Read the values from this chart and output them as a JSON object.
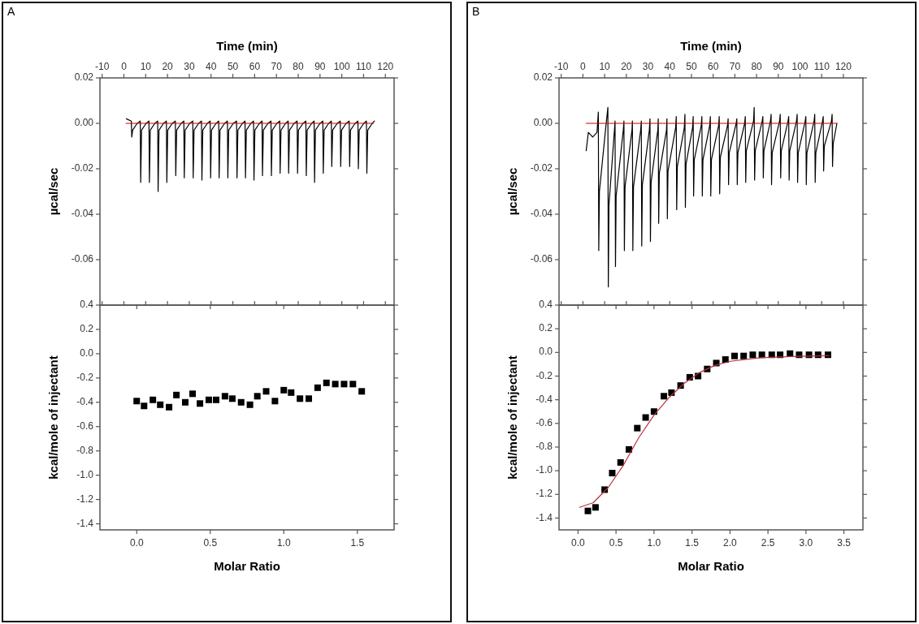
{
  "chart_data": [
    {
      "type": "line",
      "title": "A",
      "xlabel": "Time (min)",
      "ylabel": "µcal/sec",
      "xlim": [
        -11,
        124
      ],
      "xticks": [
        -10,
        0,
        10,
        20,
        30,
        40,
        50,
        60,
        70,
        80,
        90,
        100,
        110,
        120
      ],
      "ylim": [
        -0.08,
        0.02
      ],
      "yticks": [
        {
          "value": -0.06,
          "label": "-0.06"
        },
        {
          "value": -0.04,
          "label": "-0.04"
        },
        {
          "value": -0.02,
          "label": "-0.02"
        },
        {
          "value": 0,
          "label": "0.00"
        },
        {
          "value": 0.02,
          "label": "0.02"
        }
      ],
      "series": [
        {
          "color": "#000000",
          "x": [
            1.1,
            3.4,
            3.6,
            4.0,
            6.1,
            7.5,
            7.7,
            8.1,
            10.2,
            11.5,
            11.7,
            12.1,
            14.2,
            15.5,
            15.7,
            16.1,
            18.2,
            19.5,
            19.7,
            20.1,
            22.2,
            23.6,
            23.8,
            24.2,
            26.3,
            27.5,
            27.7,
            28.1,
            30.2,
            31.6,
            31.8,
            32.2,
            34.3,
            35.6,
            35.8,
            36.2,
            38.3,
            39.6,
            39.8,
            40.2,
            42.3,
            43.5,
            43.7,
            44.1,
            46.2,
            47.5,
            47.7,
            48.1,
            50.2,
            51.7,
            51.9,
            52.3,
            54.4,
            55.6,
            55.8,
            56.2,
            58.3,
            59.5,
            59.7,
            60.1,
            62.2,
            63.4,
            63.6,
            64.0,
            66.1,
            67.5,
            67.7,
            68.1,
            70.2,
            71.5,
            71.7,
            72.1,
            74.2,
            75.4,
            75.6,
            76.0,
            78.1,
            79.5,
            79.7,
            80.1,
            82.2,
            83.5,
            83.7,
            84.1,
            86.2,
            87.3,
            87.5,
            87.9,
            90.0,
            91.3,
            91.5,
            91.9,
            94.0,
            95.2,
            95.4,
            95.8,
            97.9,
            99.3,
            99.5,
            99.9,
            102.0,
            103.4,
            103.6,
            104.0,
            106.1,
            107.4,
            107.6,
            108.0,
            110.1,
            111.3,
            111.5,
            111.9,
            114.0,
            115.0
          ],
          "values": [
            0.002,
            0.001,
            -0.006,
            -0.003,
            0.0,
            0.001,
            -0.026,
            -0.003,
            0.0,
            0.001,
            -0.026,
            -0.003,
            0.0,
            0.001,
            -0.03,
            -0.003,
            0.0,
            0.001,
            -0.026,
            -0.003,
            0.0,
            0.001,
            -0.023,
            -0.003,
            0.0,
            0.001,
            -0.024,
            -0.003,
            0.0,
            0.001,
            -0.024,
            -0.003,
            0.0,
            0.001,
            -0.025,
            -0.003,
            0.0,
            0.001,
            -0.024,
            -0.003,
            0.0,
            0.001,
            -0.024,
            -0.003,
            0.0,
            0.001,
            -0.024,
            -0.003,
            0.0,
            0.001,
            -0.024,
            -0.003,
            0.0,
            0.001,
            -0.024,
            -0.003,
            0.0,
            0.001,
            -0.025,
            -0.003,
            0.0,
            0.001,
            -0.023,
            -0.003,
            0.0,
            0.001,
            -0.023,
            -0.003,
            0.0,
            0.001,
            -0.022,
            -0.003,
            0.0,
            0.001,
            -0.022,
            -0.003,
            0.0,
            0.001,
            -0.022,
            -0.003,
            0.0,
            0.001,
            -0.023,
            -0.003,
            0.0,
            0.001,
            -0.026,
            -0.003,
            0.0,
            0.001,
            -0.022,
            -0.003,
            0.0,
            0.001,
            -0.019,
            -0.003,
            0.0,
            0.001,
            -0.019,
            -0.003,
            0.0,
            0.001,
            -0.019,
            -0.003,
            0.0,
            0.001,
            -0.02,
            -0.003,
            0.0,
            0.001,
            -0.022,
            -0.003,
            0.0,
            0.001
          ]
        },
        {
          "color": "#cc0000",
          "x": [
            1.0,
            114.5
          ],
          "values": [
            0,
            0
          ]
        }
      ]
    },
    {
      "type": "scatter",
      "marker": "square",
      "xlabel": "Molar Ratio",
      "ylabel": "kcal/mole of injectant",
      "xlim": [
        -0.25,
        1.75
      ],
      "xticks": [
        {
          "value": 0,
          "label": "0.0"
        },
        {
          "value": 0.5,
          "label": "0.5"
        },
        {
          "value": 1,
          "label": "1.0"
        },
        {
          "value": 1.5,
          "label": "1.5"
        }
      ],
      "ylim": [
        -1.45,
        0.4
      ],
      "yticks": [
        {
          "value": -1.4,
          "label": "-1.4"
        },
        {
          "value": -1.2,
          "label": "-1.2"
        },
        {
          "value": -1,
          "label": "-1.0"
        },
        {
          "value": -0.8,
          "label": "-0.8"
        },
        {
          "value": -0.6,
          "label": "-0.6"
        },
        {
          "value": -0.4,
          "label": "-0.4"
        },
        {
          "value": -0.2,
          "label": "-0.2"
        },
        {
          "value": 0,
          "label": "0.0"
        },
        {
          "value": 0.2,
          "label": "0.2"
        },
        {
          "value": 0.4,
          "label": "0.4"
        }
      ],
      "series": [
        {
          "color": "#000000",
          "x": [
            0.0,
            0.05,
            0.11,
            0.16,
            0.22,
            0.27,
            0.33,
            0.38,
            0.43,
            0.49,
            0.54,
            0.6,
            0.65,
            0.71,
            0.77,
            0.82,
            0.88,
            0.94,
            1.0,
            1.05,
            1.11,
            1.17,
            1.23,
            1.29,
            1.35,
            1.41,
            1.47,
            1.53
          ],
          "values": [
            -0.39,
            -0.43,
            -0.38,
            -0.42,
            -0.44,
            -0.34,
            -0.4,
            -0.33,
            -0.41,
            -0.38,
            -0.38,
            -0.35,
            -0.37,
            -0.4,
            -0.42,
            -0.35,
            -0.31,
            -0.39,
            -0.3,
            -0.32,
            -0.37,
            -0.37,
            -0.28,
            -0.24,
            -0.25,
            -0.25,
            -0.25,
            -0.31
          ]
        }
      ]
    },
    {
      "type": "line",
      "title": "B",
      "xlabel": "Time (min)",
      "ylabel": "µcal/sec",
      "xlim": [
        -11,
        129
      ],
      "xticks": [
        -10,
        0,
        10,
        20,
        30,
        40,
        50,
        60,
        70,
        80,
        90,
        100,
        110,
        120
      ],
      "ylim": [
        -0.08,
        0.02
      ],
      "yticks": [
        {
          "value": -0.06,
          "label": "-0.06"
        },
        {
          "value": -0.04,
          "label": "-0.04"
        },
        {
          "value": -0.02,
          "label": "-0.02"
        },
        {
          "value": 0,
          "label": "0.00"
        },
        {
          "value": 0.02,
          "label": "0.02"
        }
      ],
      "series": [
        {
          "color": "#000000",
          "x": [
            1.5,
            2.5,
            4.5,
            6.5,
            7.1,
            7.3,
            7.6,
            10.5,
            11.5,
            11.7,
            12.0,
            14.6,
            14.8,
            15.0,
            15.3,
            18.6,
            18.9,
            19.1,
            19.4,
            22.6,
            22.8,
            23.0,
            23.3,
            26.6,
            26.9,
            27.1,
            27.4,
            30.6,
            30.9,
            31.1,
            31.4,
            34.5,
            34.7,
            34.9,
            35.2,
            38.5,
            38.7,
            38.9,
            39.2,
            42.7,
            43.0,
            43.2,
            43.5,
            46.7,
            47.0,
            47.2,
            47.5,
            50.5,
            50.8,
            51.0,
            51.3,
            54.5,
            54.8,
            55.0,
            55.3,
            58.4,
            58.7,
            58.9,
            59.2,
            62.5,
            62.8,
            63.0,
            63.3,
            66.6,
            66.9,
            67.1,
            67.4,
            70.6,
            70.9,
            71.1,
            71.4,
            74.5,
            74.8,
            75.0,
            75.3,
            78.6,
            78.9,
            79.1,
            79.4,
            82.6,
            82.9,
            83.1,
            83.4,
            86.4,
            86.7,
            86.9,
            87.2,
            90.6,
            90.9,
            91.1,
            91.4,
            94.5,
            94.8,
            95.0,
            95.3,
            98.4,
            98.7,
            98.9,
            99.2,
            102.4,
            102.7,
            102.9,
            103.2,
            106.5,
            106.8,
            107.0,
            107.3,
            110.4,
            110.7,
            110.9,
            111.2,
            114.5,
            114.8,
            115.0,
            115.3,
            117.0
          ],
          "values": [
            -0.012,
            -0.004,
            -0.006,
            -0.004,
            0.005,
            -0.056,
            -0.03,
            -0.002,
            0.007,
            -0.072,
            -0.036,
            -0.002,
            0.001,
            -0.063,
            -0.032,
            -0.003,
            0.001,
            -0.056,
            -0.028,
            -0.003,
            0.001,
            -0.056,
            -0.028,
            -0.003,
            0.001,
            -0.054,
            -0.027,
            -0.003,
            0.002,
            -0.052,
            -0.026,
            -0.003,
            0.002,
            -0.044,
            -0.022,
            -0.003,
            0.002,
            -0.042,
            -0.021,
            -0.002,
            0.003,
            -0.038,
            -0.019,
            -0.002,
            0.004,
            -0.037,
            -0.018,
            -0.002,
            0.003,
            -0.032,
            -0.016,
            -0.001,
            0.003,
            -0.032,
            -0.016,
            -0.001,
            0.003,
            -0.032,
            -0.016,
            -0.001,
            0.003,
            -0.031,
            -0.015,
            -0.001,
            0.002,
            -0.027,
            -0.013,
            0.0,
            0.002,
            -0.027,
            -0.013,
            0.0,
            0.003,
            -0.026,
            -0.012,
            0.001,
            0.007,
            -0.025,
            -0.012,
            0.001,
            0.003,
            -0.024,
            -0.012,
            0.001,
            0.004,
            -0.027,
            -0.013,
            0.001,
            0.004,
            -0.024,
            -0.012,
            0.001,
            0.003,
            -0.025,
            -0.012,
            0.001,
            0.004,
            -0.026,
            -0.013,
            0.001,
            0.003,
            -0.027,
            -0.013,
            0.001,
            0.004,
            -0.026,
            -0.013,
            0.001,
            0.003,
            -0.021,
            -0.01,
            0.001,
            0.004,
            -0.019,
            -0.009,
            0.0
          ]
        },
        {
          "color": "#cc0000",
          "x": [
            1.5,
            117.0
          ],
          "values": [
            0,
            0
          ]
        }
      ]
    },
    {
      "type": "scatter",
      "xlabel": "Molar Ratio",
      "ylabel": "kcal/mole of injectant",
      "xlim": [
        -0.25,
        3.75
      ],
      "xticks": [
        {
          "value": 0,
          "label": "0.0"
        },
        {
          "value": 0.5,
          "label": "0.5"
        },
        {
          "value": 1,
          "label": "1.0"
        },
        {
          "value": 1.5,
          "label": "1.5"
        },
        {
          "value": 2,
          "label": "2.0"
        },
        {
          "value": 2.5,
          "label": "2.5"
        },
        {
          "value": 3,
          "label": "3.0"
        },
        {
          "value": 3.5,
          "label": "3.5"
        }
      ],
      "ylim": [
        -1.5,
        0.4
      ],
      "yticks": [
        {
          "value": -1.4,
          "label": "-1.4"
        },
        {
          "value": -1.2,
          "label": "-1.2"
        },
        {
          "value": -1,
          "label": "-1.0"
        },
        {
          "value": -0.8,
          "label": "-0.8"
        },
        {
          "value": -0.6,
          "label": "-0.6"
        },
        {
          "value": -0.4,
          "label": "-0.4"
        },
        {
          "value": -0.2,
          "label": "-0.2"
        },
        {
          "value": 0,
          "label": "0.0"
        },
        {
          "value": 0.2,
          "label": "0.2"
        },
        {
          "value": 0.4,
          "label": "0.4"
        }
      ],
      "series": [
        {
          "color": "#000000",
          "marker": "square",
          "x": [
            0.13,
            0.23,
            0.35,
            0.45,
            0.56,
            0.67,
            0.78,
            0.89,
            1.0,
            1.13,
            1.23,
            1.35,
            1.47,
            1.58,
            1.7,
            1.82,
            1.94,
            2.06,
            2.18,
            2.3,
            2.42,
            2.55,
            2.66,
            2.79,
            2.91,
            3.04,
            3.16,
            3.29
          ],
          "values": [
            -1.34,
            -1.31,
            -1.16,
            -1.02,
            -0.93,
            -0.82,
            -0.64,
            -0.55,
            -0.5,
            -0.37,
            -0.34,
            -0.28,
            -0.21,
            -0.2,
            -0.14,
            -0.09,
            -0.06,
            -0.03,
            -0.03,
            -0.02,
            -0.02,
            -0.02,
            -0.02,
            -0.01,
            -0.02,
            -0.02,
            -0.02,
            -0.02
          ]
        },
        {
          "type": "line",
          "marker": "none",
          "color": "#b8303c",
          "x": [
            0.02,
            0.2,
            0.4,
            0.6,
            0.8,
            1.0,
            1.2,
            1.4,
            1.6,
            1.8,
            2.0,
            2.4,
            2.8,
            3.3
          ],
          "values": [
            -1.31,
            -1.27,
            -1.14,
            -0.95,
            -0.72,
            -0.53,
            -0.38,
            -0.26,
            -0.17,
            -0.11,
            -0.075,
            -0.045,
            -0.035,
            -0.028
          ]
        }
      ]
    }
  ]
}
